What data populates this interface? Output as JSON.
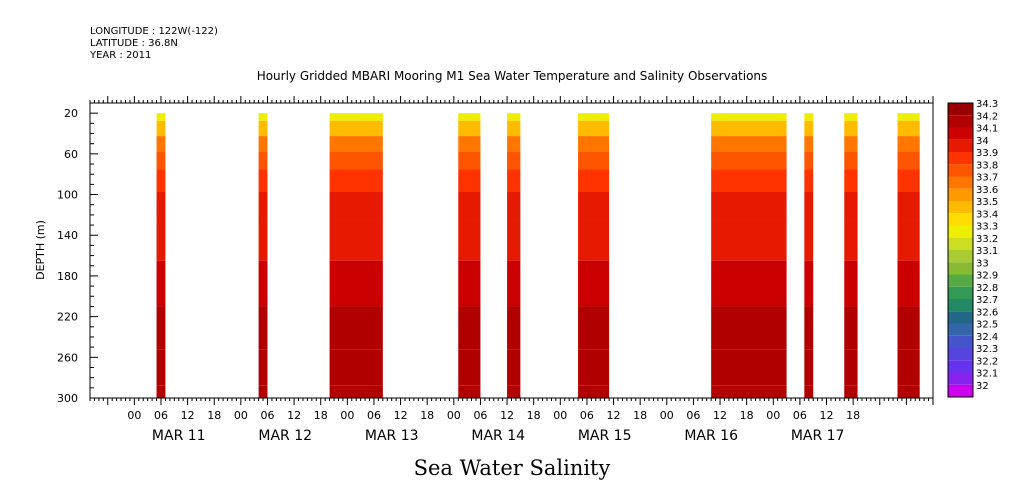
{
  "header": {
    "longitude": "LONGITUDE : 122W(-122)",
    "latitude": "LATITUDE : 36.8N",
    "year": "YEAR : 2011"
  },
  "chart_data": {
    "type": "heatmap",
    "title": "Hourly Gridded MBARI Mooring M1 Sea Water Temperature and Salinity Observations",
    "ylabel": "DEPTH (m)",
    "xlabel": "Sea Water Salinity",
    "ylim": [
      300,
      10
    ],
    "yticks": [
      20,
      60,
      100,
      140,
      180,
      220,
      260,
      300
    ],
    "x_range_hours": [
      -10,
      180
    ],
    "hour_ticks": [
      "00",
      "06",
      "12",
      "18",
      "00",
      "06",
      "12",
      "18",
      "00",
      "06",
      "12",
      "18",
      "00",
      "06",
      "12",
      "18",
      "00",
      "06",
      "12",
      "18",
      "00",
      "06",
      "12",
      "18",
      "00",
      "06",
      "12",
      "18"
    ],
    "days": [
      "MAR 11",
      "MAR 12",
      "MAR 13",
      "MAR 14",
      "MAR 15",
      "MAR 16",
      "MAR 17"
    ],
    "grid": false,
    "colorbar": {
      "placement": "right",
      "levels": [
        "34.3",
        "34.2",
        "34.1",
        "34",
        "33.9",
        "33.8",
        "33.7",
        "33.6",
        "33.5",
        "33.4",
        "33.3",
        "33.2",
        "33.1",
        "33",
        "32.9",
        "32.8",
        "32.7",
        "32.6",
        "32.5",
        "32.4",
        "32.3",
        "32.2",
        "32.1",
        "32"
      ],
      "colors": [
        "#990000",
        "#b00000",
        "#cc0000",
        "#e61a00",
        "#ff3300",
        "#ff5500",
        "#ff7700",
        "#ff9900",
        "#ffbb00",
        "#ffdd00",
        "#eeee00",
        "#ccdd22",
        "#aacc33",
        "#88bb33",
        "#55aa44",
        "#339955",
        "#228866",
        "#226688",
        "#3366aa",
        "#4455cc",
        "#5544dd",
        "#6633ee",
        "#8822ee",
        "#cc00ee"
      ]
    },
    "data_segments_hours": [
      [
        5,
        7
      ],
      [
        28,
        30
      ],
      [
        44,
        56
      ],
      [
        73,
        78
      ],
      [
        84,
        87
      ],
      [
        100,
        107
      ],
      [
        130,
        147
      ],
      [
        151,
        153
      ],
      [
        160,
        163
      ],
      [
        172,
        177
      ]
    ],
    "depth_profile": [
      {
        "depth": 20,
        "salinity": 33.3
      },
      {
        "depth": 35,
        "salinity": 33.5
      },
      {
        "depth": 50,
        "salinity": 33.7
      },
      {
        "depth": 65,
        "salinity": 33.85
      },
      {
        "depth": 85,
        "salinity": 33.95
      },
      {
        "depth": 110,
        "salinity": 34.0
      },
      {
        "depth": 140,
        "salinity": 34.05
      },
      {
        "depth": 190,
        "salinity": 34.15
      },
      {
        "depth": 230,
        "salinity": 34.2
      },
      {
        "depth": 275,
        "salinity": 34.25
      },
      {
        "depth": 300,
        "salinity": 34.2
      }
    ]
  }
}
